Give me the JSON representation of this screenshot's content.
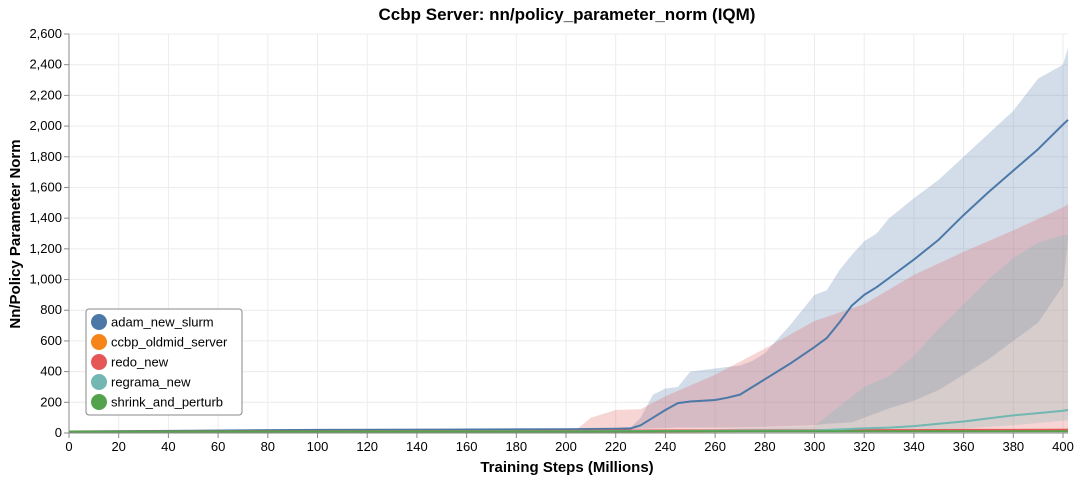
{
  "chart_data": {
    "type": "line",
    "title": "Ccbp Server: nn/policy_parameter_norm (IQM)",
    "xlabel": "Training Steps (Millions)",
    "ylabel": "Nn/Policy Parameter Norm",
    "xlim": [
      0,
      402
    ],
    "ylim": [
      0,
      2600
    ],
    "x_ticks": [
      0,
      20,
      40,
      60,
      80,
      100,
      120,
      140,
      160,
      180,
      200,
      220,
      240,
      260,
      280,
      300,
      320,
      340,
      360,
      380,
      400
    ],
    "y_ticks": [
      0,
      200,
      400,
      600,
      800,
      1000,
      1200,
      1400,
      1600,
      1800,
      2000,
      2200,
      2400,
      2600
    ],
    "y_tick_labels": [
      "0",
      "200",
      "400",
      "600",
      "800",
      "1,000",
      "1,200",
      "1,400",
      "1,600",
      "1,800",
      "2,000",
      "2,200",
      "2,400",
      "2,600"
    ],
    "grid": true,
    "legend_position": "bottom-left",
    "series": [
      {
        "name": "adam_new_slurm",
        "color": "#4c78a8",
        "x": [
          0,
          50,
          100,
          150,
          200,
          220,
          226,
          230,
          235,
          240,
          245,
          250,
          260,
          265,
          270,
          275,
          280,
          290,
          300,
          305,
          310,
          315,
          320,
          325,
          330,
          340,
          350,
          360,
          370,
          380,
          390,
          400,
          402
        ],
        "y": [
          10,
          15,
          20,
          22,
          25,
          28,
          30,
          50,
          100,
          150,
          195,
          205,
          215,
          230,
          250,
          300,
          350,
          450,
          560,
          620,
          720,
          830,
          900,
          950,
          1010,
          1130,
          1260,
          1420,
          1570,
          1710,
          1850,
          2010,
          2040
        ],
        "band_upper": [
          15,
          20,
          25,
          28,
          30,
          32,
          35,
          100,
          250,
          290,
          300,
          400,
          420,
          430,
          440,
          470,
          520,
          700,
          900,
          930,
          1060,
          1160,
          1250,
          1300,
          1400,
          1530,
          1650,
          1800,
          1950,
          2100,
          2310,
          2400,
          2510
        ],
        "band_lower": [
          5,
          10,
          15,
          18,
          20,
          22,
          25,
          28,
          30,
          32,
          35,
          35,
          35,
          35,
          36,
          38,
          40,
          45,
          50,
          60,
          65,
          70,
          100,
          130,
          160,
          210,
          280,
          380,
          480,
          600,
          720,
          960,
          1260
        ]
      },
      {
        "name": "ccbp_oldmid_server",
        "color": "#f58518",
        "x": [
          0,
          100,
          200,
          250,
          300,
          350,
          402
        ],
        "y": [
          5,
          8,
          10,
          12,
          15,
          18,
          20
        ],
        "band_upper": [
          8,
          12,
          14,
          16,
          20,
          24,
          26
        ],
        "band_lower": [
          3,
          5,
          7,
          9,
          11,
          13,
          15
        ]
      },
      {
        "name": "redo_new",
        "color": "#e45756",
        "x": [
          0,
          100,
          200,
          204,
          210,
          220,
          230,
          240,
          260,
          280,
          300,
          320,
          340,
          360,
          380,
          400,
          402
        ],
        "y": [
          10,
          12,
          14,
          15,
          15,
          16,
          16,
          17,
          17,
          18,
          18,
          19,
          19,
          20,
          20,
          21,
          21
        ],
        "band_upper": [
          12,
          15,
          17,
          20,
          100,
          150,
          155,
          240,
          380,
          550,
          730,
          840,
          1030,
          1180,
          1320,
          1470,
          1490
        ],
        "band_lower": [
          8,
          9,
          10,
          10,
          11,
          11,
          12,
          12,
          13,
          14,
          14,
          15,
          15,
          16,
          16,
          16,
          16
        ]
      },
      {
        "name": "regrama_new",
        "color": "#72b7b2",
        "x": [
          0,
          100,
          200,
          250,
          300,
          320,
          330,
          340,
          350,
          360,
          370,
          380,
          390,
          400,
          402
        ],
        "y": [
          8,
          10,
          12,
          14,
          16,
          30,
          35,
          45,
          60,
          75,
          95,
          115,
          130,
          145,
          150
        ],
        "band_upper": [
          10,
          12,
          14,
          20,
          45,
          300,
          370,
          500,
          680,
          840,
          1000,
          1140,
          1240,
          1290,
          1290
        ],
        "band_lower": [
          6,
          8,
          10,
          12,
          13,
          15,
          17,
          20,
          25,
          30,
          40,
          50,
          65,
          80,
          85
        ]
      },
      {
        "name": "shrink_and_perturb",
        "color": "#54a24b",
        "x": [
          0,
          100,
          200,
          250,
          300,
          350,
          402
        ],
        "y": [
          9,
          10,
          10,
          11,
          11,
          11,
          12
        ],
        "band_upper": [
          11,
          12,
          12,
          13,
          13,
          13,
          14
        ],
        "band_lower": [
          7,
          8,
          8,
          9,
          9,
          9,
          10
        ]
      }
    ]
  }
}
